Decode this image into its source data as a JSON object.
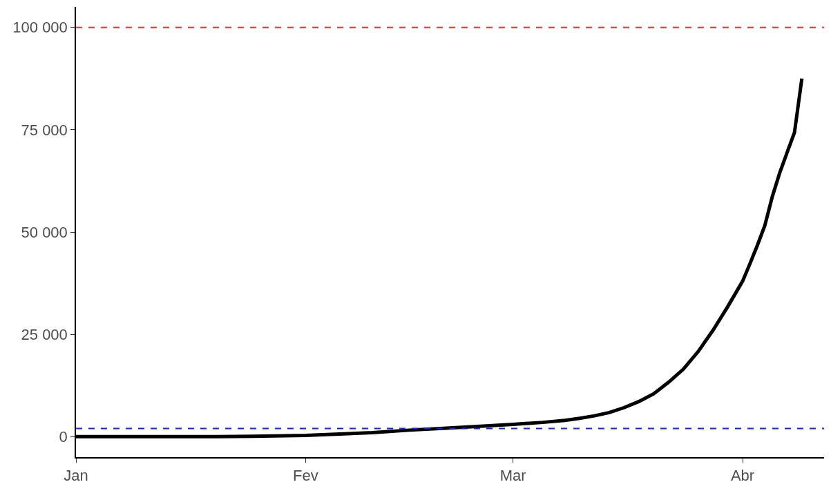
{
  "chart_data": {
    "type": "line",
    "x": [
      "--01-01",
      "--01-10",
      "--01-20",
      "--01-25",
      "--02-01",
      "--02-05",
      "--02-10",
      "--02-15",
      "--02-20",
      "--02-25",
      "--03-01",
      "--03-05",
      "--03-08",
      "--03-10",
      "--03-12",
      "--03-14",
      "--03-16",
      "--03-18",
      "--03-20",
      "--03-22",
      "--03-24",
      "--03-26",
      "--03-28",
      "--03-30",
      "--04-01",
      "--04-02",
      "--04-03",
      "--04-04",
      "--04-05",
      "--04-06",
      "--04-07",
      "--04-08",
      "--04-09"
    ],
    "series": [
      {
        "color": "#000000",
        "values": [
          0,
          0,
          0,
          100,
          300,
          600,
          1000,
          1600,
          2100,
          2600,
          3000,
          3500,
          4000,
          4500,
          5100,
          5900,
          7100,
          8600,
          10500,
          13300,
          16500,
          20800,
          26000,
          31800,
          38000,
          42300,
          46800,
          51600,
          58600,
          64400,
          69400,
          74300,
          87500
        ]
      }
    ],
    "xlim": [
      "--01-01",
      "--04-12"
    ],
    "xticks": [
      {
        "value": "--01-01",
        "label": "Jan"
      },
      {
        "value": "--02-01",
        "label": "Fev"
      },
      {
        "value": "--03-01",
        "label": "Mar"
      },
      {
        "value": "--04-01",
        "label": "Abr"
      }
    ],
    "ylim": [
      -5000,
      105000
    ],
    "yticks": [
      {
        "value": 0,
        "label": "0"
      },
      {
        "value": 25000,
        "label": "25 000"
      },
      {
        "value": 50000,
        "label": "50 000"
      },
      {
        "value": 75000,
        "label": "75 000"
      },
      {
        "value": 100000,
        "label": "100 000"
      }
    ],
    "ref_lines": [
      {
        "axis": "y",
        "value": 100000,
        "color": "#e8322b",
        "line_style": "dashed"
      },
      {
        "axis": "y",
        "value": 2000,
        "color": "#1020f0",
        "line_style": "dashed"
      }
    ],
    "grid": false,
    "marker": "none",
    "line_style": "solid"
  }
}
